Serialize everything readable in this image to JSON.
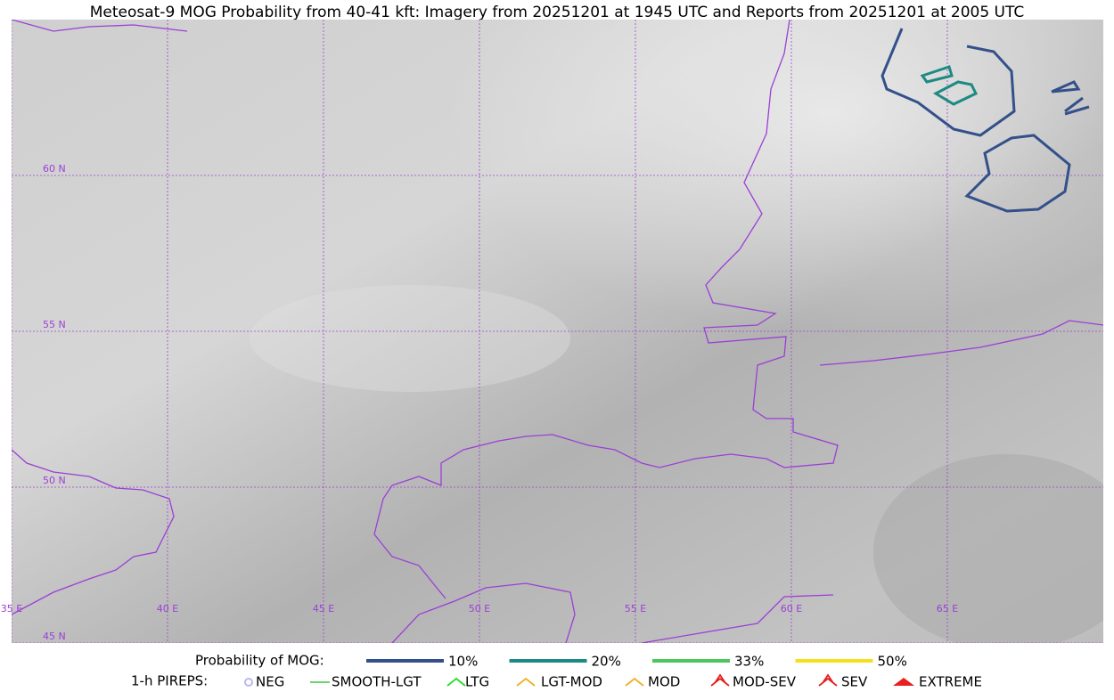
{
  "title": "Meteosat-9 MOG Probability from 40-41 kft: Imagery from 20251201 at 1945 UTC and Reports from 20251201 at 2005 UTC",
  "lon_labels": [
    "35 E",
    "40 E",
    "45 E",
    "50 E",
    "55 E",
    "60 E",
    "65 E"
  ],
  "lat_labels": [
    "60 N",
    "55 N",
    "50 N",
    "45 N"
  ],
  "legend": {
    "mog_title": "Probability of MOG:",
    "mog_items": [
      {
        "label": "10%",
        "color": "#34508a"
      },
      {
        "label": "20%",
        "color": "#1d8a83"
      },
      {
        "label": "33%",
        "color": "#4cc55a"
      },
      {
        "label": "50%",
        "color": "#f5e11b"
      }
    ],
    "pireps_title": "1-h PIREPS:",
    "pireps_items": [
      {
        "label": "NEG",
        "color": "#b8b8f0"
      },
      {
        "label": "SMOOTH-LGT",
        "color": "#33cc33"
      },
      {
        "label": "LTG",
        "color": "#22dd22"
      },
      {
        "label": "LGT-MOD",
        "color": "#f0b020"
      },
      {
        "label": "MOD",
        "color": "#f0b020"
      },
      {
        "label": "MOD-SEV",
        "color": "#e82020"
      },
      {
        "label": "SEV",
        "color": "#e82020"
      },
      {
        "label": "EXTREME",
        "color": "#e82020"
      }
    ]
  }
}
